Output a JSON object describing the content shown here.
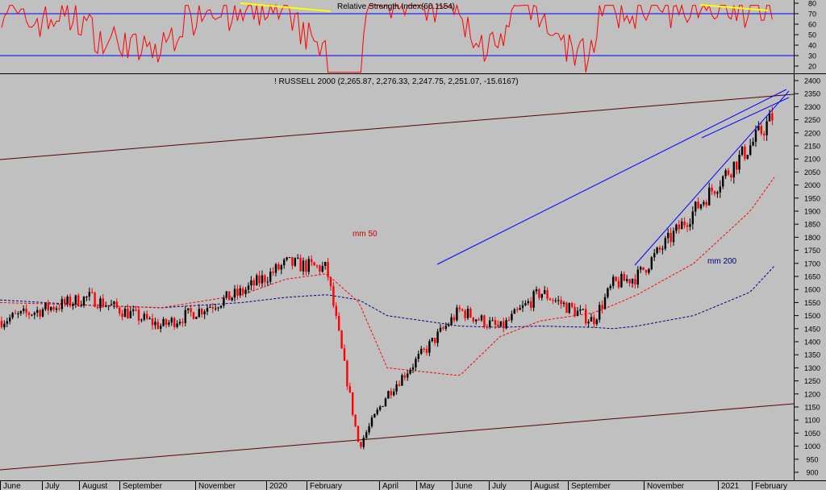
{
  "rsi_panel": {
    "title": "Relative Strength Index(60.1154)",
    "levels": [
      70,
      30
    ],
    "ylim": [
      10,
      85
    ],
    "ticks": [
      80,
      70,
      60,
      50,
      40,
      30,
      20
    ],
    "line_color": "#ff0000",
    "level_color": "#0000ff",
    "divergence_color": "#ffff00"
  },
  "price_panel": {
    "title": "! RUSSELL 2000 (2,265.87, 2,276.33, 2,247.75, 2,251.07, -15.6167)",
    "ylim": [
      880,
      2400
    ],
    "ticks": [
      2400,
      2350,
      2300,
      2250,
      2200,
      2150,
      2100,
      2050,
      2000,
      1950,
      1900,
      1850,
      1800,
      1750,
      1700,
      1650,
      1600,
      1550,
      1500,
      1450,
      1400,
      1350,
      1300,
      1250,
      1200,
      1150,
      1100,
      1050,
      1000,
      950,
      900
    ],
    "ma50_label": "mm 50",
    "ma200_label": "mm 200",
    "up_color": "#000000",
    "down_color": "#ff0000",
    "ma50_color": "#ff0000",
    "ma200_color": "#000080",
    "trend_color": "#0000ff",
    "channel_color": "#5a0000"
  },
  "x_axis": {
    "labels": [
      "June",
      "July",
      "August",
      "September",
      "November",
      "2020",
      "February",
      "April",
      "May",
      "June",
      "July",
      "August",
      "September",
      "November",
      "2021",
      "February"
    ]
  },
  "chart_data": {
    "type": "candlestick",
    "title": "! RUSSELL 2000 (2,265.87, 2,276.33, 2,247.75, 2,251.07, -15.6167)",
    "series": [
      {
        "name": "! RUSSELL 2000",
        "x": [
          "2019-06",
          "2019-08",
          "2019-10",
          "2019-12",
          "2020-01",
          "2020-02",
          "2020-03",
          "2020-04",
          "2020-06",
          "2020-07",
          "2020-08",
          "2020-09",
          "2020-10",
          "2020-11",
          "2020-12",
          "2021-01",
          "2021-02"
        ],
        "values": [
          1480,
          1570,
          1460,
          1590,
          1700,
          1680,
          1000,
          1200,
          1520,
          1450,
          1590,
          1480,
          1620,
          1650,
          1900,
          2150,
          2270
        ]
      },
      {
        "name": "mm 50",
        "values": [
          1550,
          1540,
          1530,
          1580,
          1640,
          1660,
          1550,
          1300,
          1270,
          1420,
          1480,
          1510,
          1540,
          1580,
          1700,
          1900,
          2030
        ]
      },
      {
        "name": "mm 200",
        "values": [
          1560,
          1540,
          1530,
          1550,
          1570,
          1580,
          1560,
          1500,
          1460,
          1455,
          1460,
          1455,
          1450,
          1460,
          1500,
          1590,
          1690
        ]
      }
    ],
    "ylim": [
      880,
      2400
    ]
  }
}
